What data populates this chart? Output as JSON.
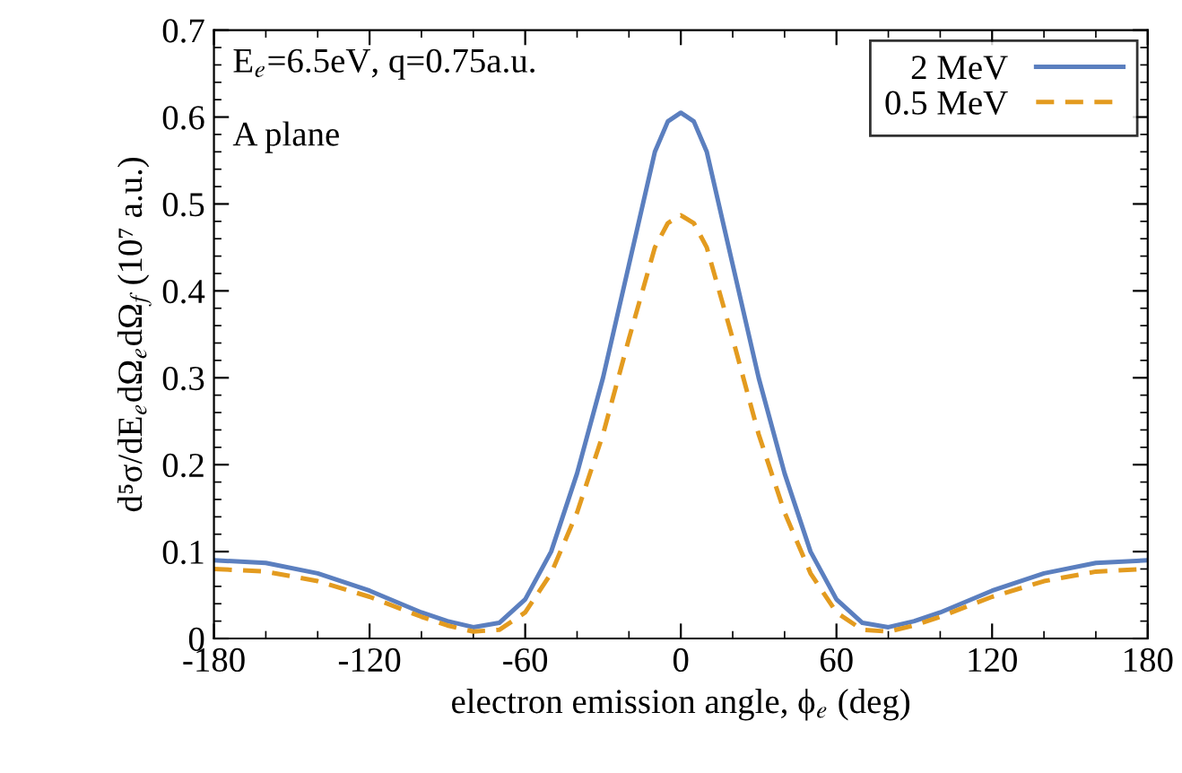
{
  "chart_data": {
    "type": "line",
    "xlabel": "electron emission angle, ϕ$_{e}$ (deg)",
    "ylabel": "d⁵σ/dE$_{e}$dΩ$_{e}$dΩ$_{f}$ (10⁷ a.u.)",
    "annotations": [
      "E$_{e}$=6.5eV, q=0.75a.u.",
      "A plane"
    ],
    "xlim": [
      -180,
      180
    ],
    "xticks": [
      -180,
      -120,
      -60,
      0,
      60,
      120,
      180
    ],
    "ylim": [
      0,
      0.7
    ],
    "yticks": [
      0,
      0.1,
      0.2,
      0.3,
      0.4,
      0.5,
      0.6,
      0.7
    ],
    "grid": false,
    "legend": "top right",
    "marker": "none",
    "series": [
      {
        "name": "2 MeV",
        "color": "#5b7fbf",
        "line_style": "solid",
        "x": [
          -180,
          -160,
          -140,
          -120,
          -100,
          -90,
          -80,
          -70,
          -60,
          -50,
          -40,
          -30,
          -20,
          -10,
          -5,
          0,
          5,
          10,
          20,
          30,
          40,
          50,
          60,
          70,
          80,
          90,
          100,
          120,
          140,
          160,
          180
        ],
        "values": [
          0.09,
          0.087,
          0.075,
          0.055,
          0.03,
          0.02,
          0.013,
          0.018,
          0.045,
          0.1,
          0.19,
          0.3,
          0.43,
          0.56,
          0.595,
          0.605,
          0.595,
          0.56,
          0.43,
          0.3,
          0.19,
          0.1,
          0.045,
          0.018,
          0.013,
          0.02,
          0.03,
          0.055,
          0.075,
          0.087,
          0.09
        ]
      },
      {
        "name": "0.5 MeV",
        "color": "#e39b1f",
        "line_style": "dashed",
        "x": [
          -180,
          -160,
          -140,
          -120,
          -100,
          -90,
          -80,
          -70,
          -60,
          -50,
          -40,
          -30,
          -20,
          -10,
          -5,
          0,
          5,
          10,
          20,
          30,
          40,
          50,
          60,
          70,
          80,
          90,
          100,
          120,
          140,
          160,
          180
        ],
        "values": [
          0.08,
          0.077,
          0.066,
          0.048,
          0.025,
          0.015,
          0.008,
          0.01,
          0.03,
          0.075,
          0.145,
          0.235,
          0.345,
          0.45,
          0.478,
          0.487,
          0.478,
          0.45,
          0.345,
          0.235,
          0.145,
          0.075,
          0.03,
          0.01,
          0.008,
          0.015,
          0.025,
          0.048,
          0.066,
          0.077,
          0.08
        ]
      }
    ]
  }
}
